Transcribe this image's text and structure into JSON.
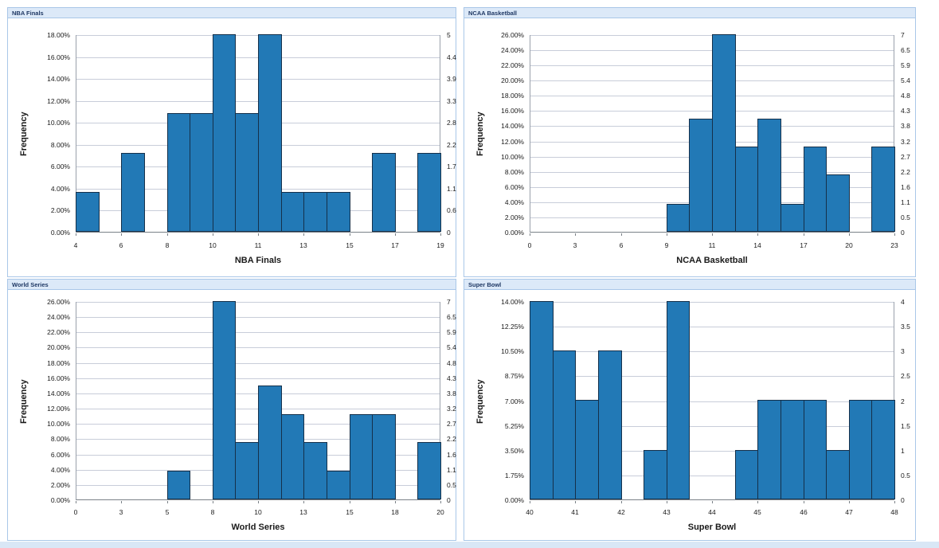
{
  "colors": {
    "bar_fill": "#2279b6",
    "bar_stroke": "#15304a",
    "gridline": "#c8cdd9",
    "plot_side_border": "#9aa1ab",
    "plot_baseline": "#7a8187",
    "tick_label": "#1a1a1a",
    "header_bg": "#dce9f8",
    "header_text": "#1f3864",
    "header_border": "#a9c7e8",
    "panel_border": "#a9c7e8",
    "page_bg": "#ffffff",
    "bottom_strip_bg": "#d9e7f6"
  },
  "chart_data": [
    {
      "type": "bar",
      "subtype": "histogram",
      "panel_title": "NBA Finals",
      "x_title": "NBA Finals",
      "y_title": "Frequency",
      "left_axis_ticks_top_to_bottom": [
        "18.00%",
        "16.00%",
        "14.00%",
        "12.00%",
        "10.00%",
        "8.00%",
        "6.00%",
        "4.00%",
        "2.00%",
        "0.00%"
      ],
      "right_axis_ticks_top_to_bottom": [
        "5",
        "4.4",
        "3.9",
        "3.3",
        "2.8",
        "2.2",
        "1.7",
        "1.1",
        "0.6",
        "0"
      ],
      "x_tick_labels": [
        "4",
        "6",
        "8",
        "10",
        "11",
        "13",
        "15",
        "17",
        "19"
      ],
      "x_range_labels": [
        4,
        19
      ],
      "max_pct": 18,
      "total_slots": 16,
      "grid": true,
      "bars": [
        {
          "slot": 0,
          "pct": 3.6,
          "count": 1
        },
        {
          "slot": 2,
          "pct": 7.2,
          "count": 2
        },
        {
          "slot": 4,
          "pct": 10.8,
          "count": 3
        },
        {
          "slot": 5,
          "pct": 10.8,
          "count": 3
        },
        {
          "slot": 6,
          "pct": 18.0,
          "count": 5
        },
        {
          "slot": 7,
          "pct": 10.8,
          "count": 3
        },
        {
          "slot": 8,
          "pct": 18.0,
          "count": 5
        },
        {
          "slot": 9,
          "pct": 3.6,
          "count": 1
        },
        {
          "slot": 10,
          "pct": 3.6,
          "count": 1
        },
        {
          "slot": 11,
          "pct": 3.6,
          "count": 1
        },
        {
          "slot": 13,
          "pct": 7.2,
          "count": 2
        },
        {
          "slot": 15,
          "pct": 7.2,
          "count": 2
        }
      ]
    },
    {
      "type": "bar",
      "subtype": "histogram",
      "panel_title": "NCAA Basketball",
      "x_title": "NCAA Basketball",
      "y_title": "Frequency",
      "left_axis_ticks_top_to_bottom": [
        "26.00%",
        "24.00%",
        "22.00%",
        "20.00%",
        "18.00%",
        "16.00%",
        "14.00%",
        "12.00%",
        "10.00%",
        "8.00%",
        "6.00%",
        "4.00%",
        "2.00%",
        "0.00%"
      ],
      "right_axis_ticks_top_to_bottom": [
        "7",
        "6.5",
        "5.9",
        "5.4",
        "4.8",
        "4.3",
        "3.8",
        "3.2",
        "2.7",
        "2.2",
        "1.6",
        "1.1",
        "0.5",
        "0"
      ],
      "x_tick_labels": [
        "0",
        "3",
        "6",
        "9",
        "11",
        "14",
        "17",
        "20",
        "23"
      ],
      "x_range_labels": [
        0,
        23
      ],
      "max_pct": 26,
      "total_slots": 16,
      "grid": true,
      "bars": [
        {
          "slot": 6,
          "pct": 3.7,
          "count": 1
        },
        {
          "slot": 7,
          "pct": 14.9,
          "count": 4
        },
        {
          "slot": 8,
          "pct": 26.0,
          "count": 7
        },
        {
          "slot": 9,
          "pct": 11.2,
          "count": 3
        },
        {
          "slot": 10,
          "pct": 14.9,
          "count": 4
        },
        {
          "slot": 11,
          "pct": 3.7,
          "count": 1
        },
        {
          "slot": 12,
          "pct": 11.2,
          "count": 3
        },
        {
          "slot": 13,
          "pct": 7.5,
          "count": 2
        },
        {
          "slot": 15,
          "pct": 11.2,
          "count": 3
        }
      ]
    },
    {
      "type": "bar",
      "subtype": "histogram",
      "panel_title": "World Series",
      "x_title": "World Series",
      "y_title": "Frequency",
      "left_axis_ticks_top_to_bottom": [
        "26.00%",
        "24.00%",
        "22.00%",
        "20.00%",
        "18.00%",
        "16.00%",
        "14.00%",
        "12.00%",
        "10.00%",
        "8.00%",
        "6.00%",
        "4.00%",
        "2.00%",
        "0.00%"
      ],
      "right_axis_ticks_top_to_bottom": [
        "7",
        "6.5",
        "5.9",
        "5.4",
        "4.8",
        "4.3",
        "3.8",
        "3.2",
        "2.7",
        "2.2",
        "1.6",
        "1.1",
        "0.5",
        "0"
      ],
      "x_tick_labels": [
        "0",
        "3",
        "5",
        "8",
        "10",
        "13",
        "15",
        "18",
        "20"
      ],
      "x_range_labels": [
        0,
        20
      ],
      "max_pct": 26,
      "total_slots": 16,
      "grid": true,
      "bars": [
        {
          "slot": 4,
          "pct": 3.8,
          "count": 1
        },
        {
          "slot": 6,
          "pct": 26.0,
          "count": 7
        },
        {
          "slot": 7,
          "pct": 7.5,
          "count": 2
        },
        {
          "slot": 8,
          "pct": 14.9,
          "count": 4
        },
        {
          "slot": 9,
          "pct": 11.2,
          "count": 3
        },
        {
          "slot": 10,
          "pct": 7.5,
          "count": 2
        },
        {
          "slot": 11,
          "pct": 3.8,
          "count": 1
        },
        {
          "slot": 12,
          "pct": 11.2,
          "count": 3
        },
        {
          "slot": 13,
          "pct": 11.2,
          "count": 3
        },
        {
          "slot": 15,
          "pct": 7.5,
          "count": 2
        }
      ]
    },
    {
      "type": "bar",
      "subtype": "histogram",
      "panel_title": "Super Bowl",
      "x_title": "Super Bowl",
      "y_title": "Frequency",
      "left_axis_ticks_top_to_bottom": [
        "14.00%",
        "12.25%",
        "10.50%",
        "8.75%",
        "7.00%",
        "5.25%",
        "3.50%",
        "1.75%",
        "0.00%"
      ],
      "right_axis_ticks_top_to_bottom": [
        "4",
        "3.5",
        "3",
        "2.5",
        "2",
        "1.5",
        "1",
        "0.5",
        "0"
      ],
      "x_tick_labels": [
        "40",
        "41",
        "42",
        "43",
        "44",
        "45",
        "46",
        "47",
        "48"
      ],
      "x_range_labels": [
        40,
        48
      ],
      "max_pct": 14,
      "total_slots": 16,
      "grid": true,
      "bars": [
        {
          "slot": 0,
          "pct": 14.0,
          "count": 4
        },
        {
          "slot": 1,
          "pct": 10.5,
          "count": 3
        },
        {
          "slot": 2,
          "pct": 7.0,
          "count": 2
        },
        {
          "slot": 3,
          "pct": 10.5,
          "count": 3
        },
        {
          "slot": 5,
          "pct": 3.5,
          "count": 1
        },
        {
          "slot": 6,
          "pct": 14.0,
          "count": 4
        },
        {
          "slot": 9,
          "pct": 3.5,
          "count": 1
        },
        {
          "slot": 10,
          "pct": 7.0,
          "count": 2
        },
        {
          "slot": 11,
          "pct": 7.0,
          "count": 2
        },
        {
          "slot": 12,
          "pct": 7.0,
          "count": 2
        },
        {
          "slot": 13,
          "pct": 3.5,
          "count": 1
        },
        {
          "slot": 14,
          "pct": 7.0,
          "count": 2
        },
        {
          "slot": 15,
          "pct": 7.0,
          "count": 2
        }
      ]
    }
  ]
}
